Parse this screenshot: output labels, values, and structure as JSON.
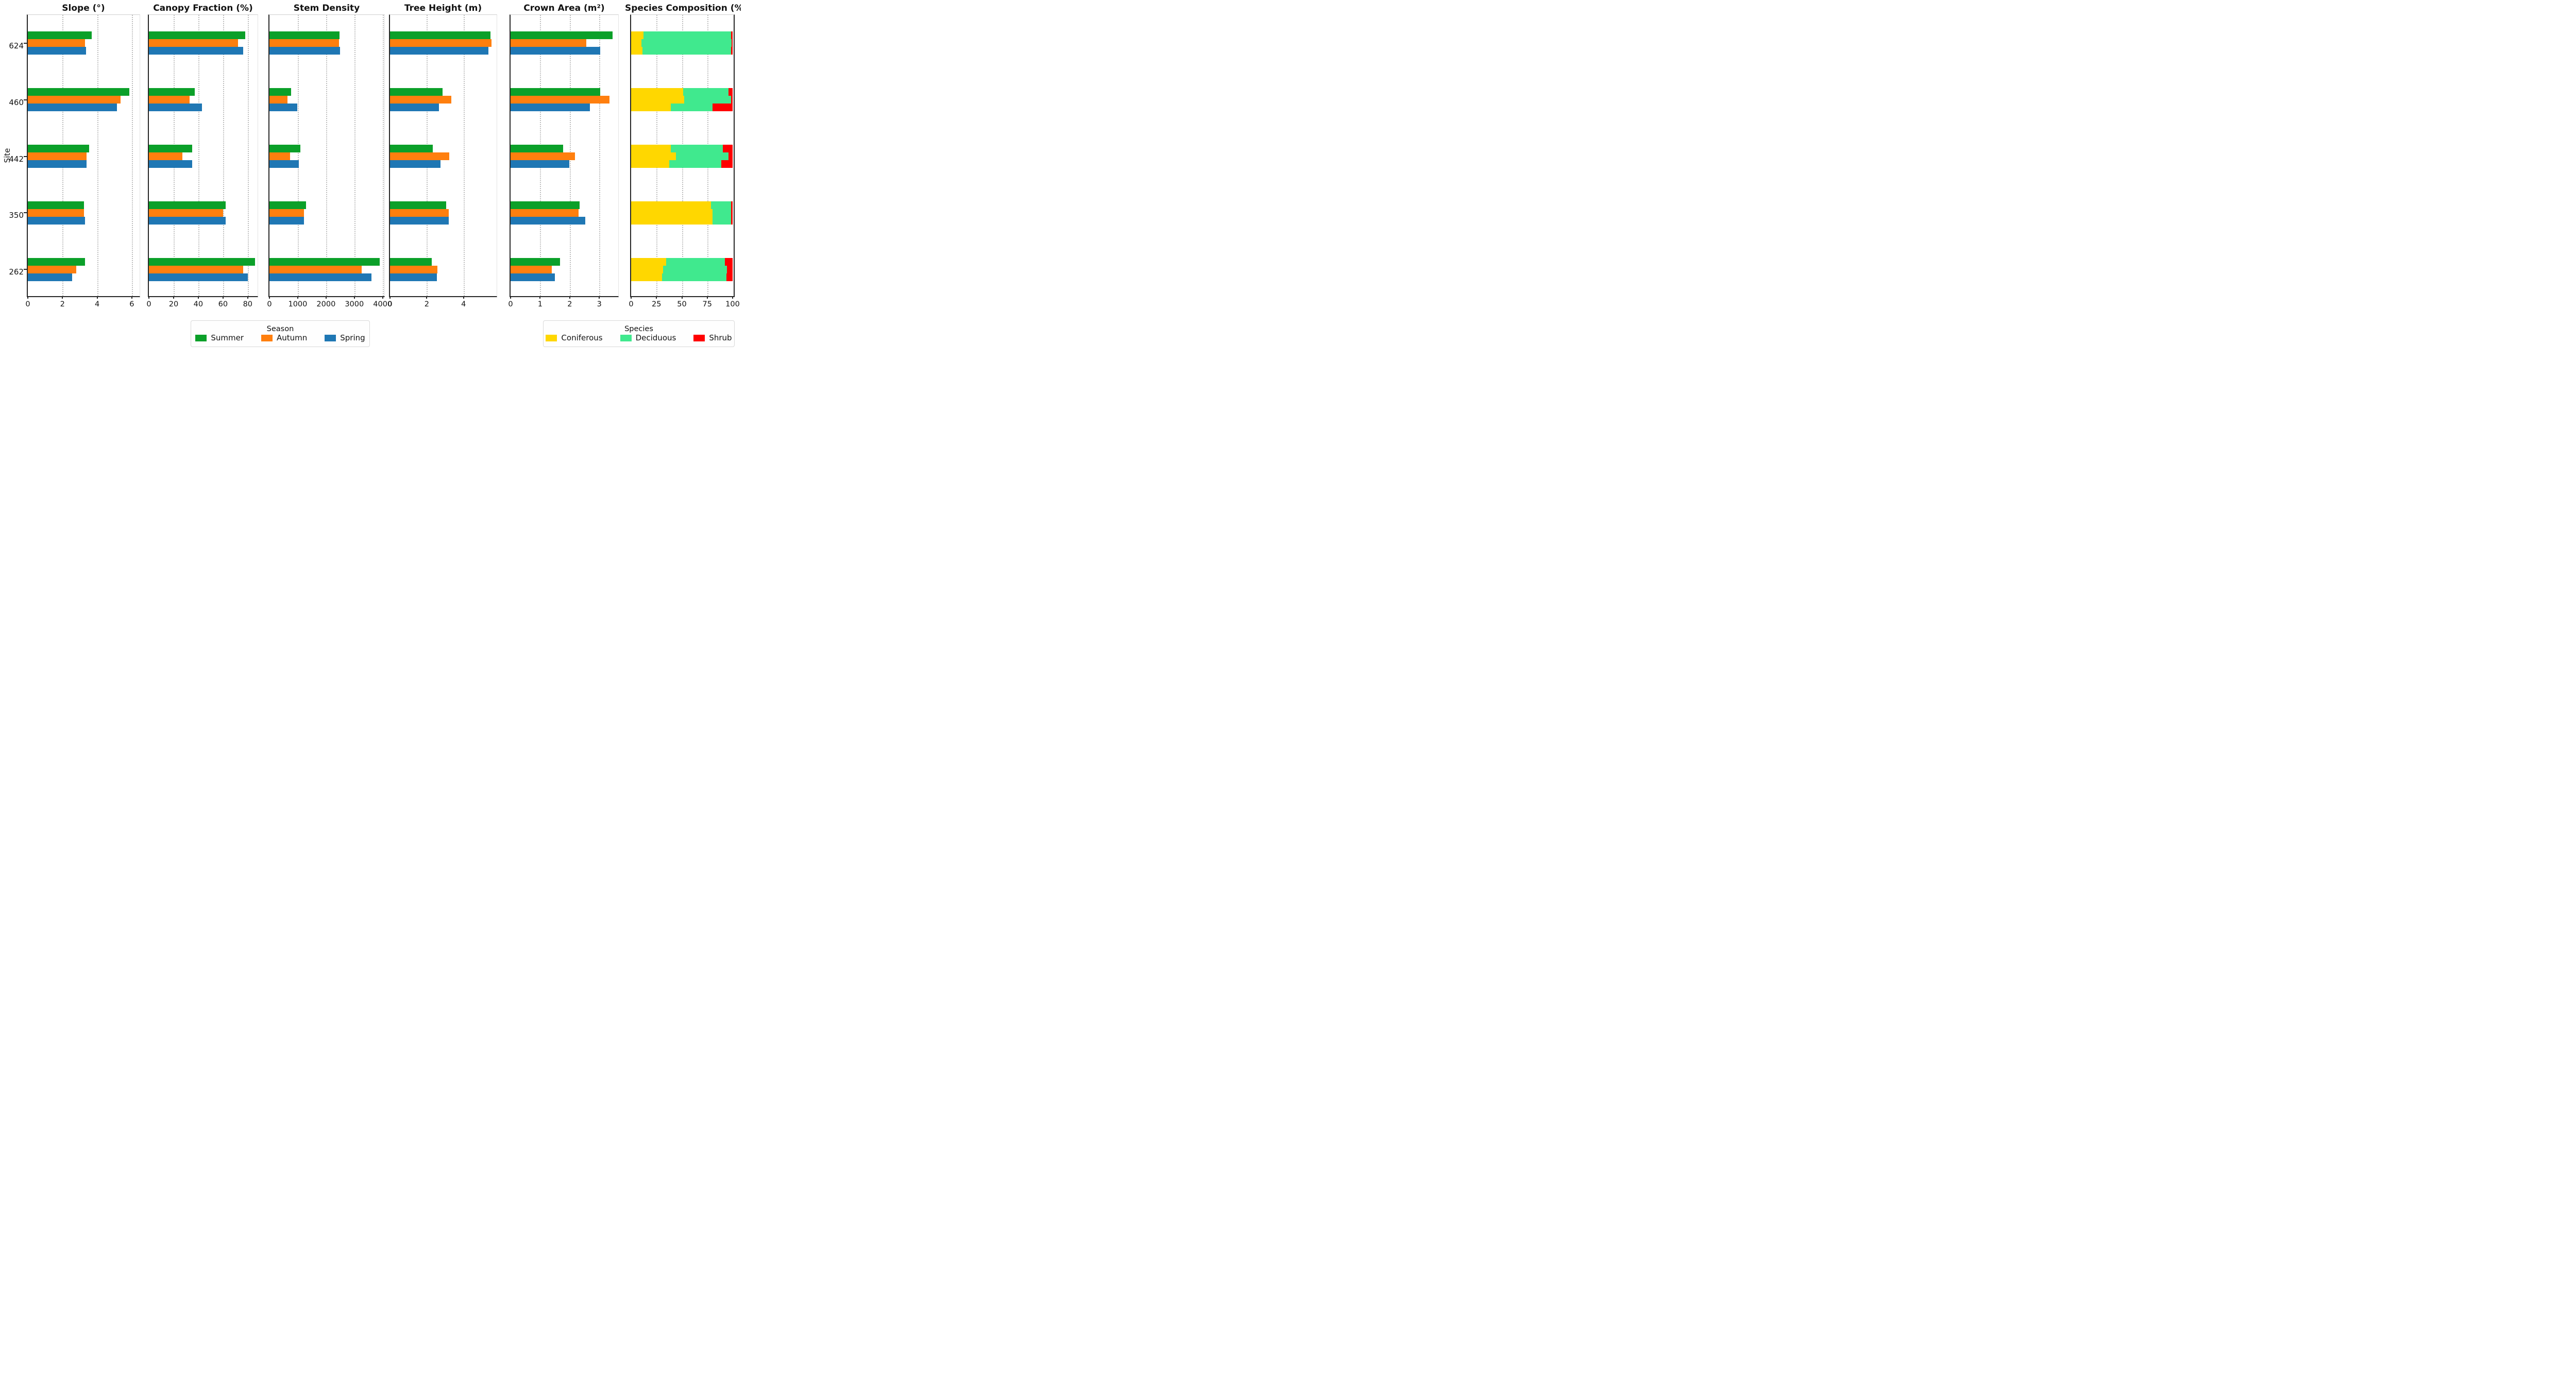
{
  "y_axis": {
    "label": "Site",
    "sites": [
      "624",
      "460",
      "442",
      "350",
      "262"
    ]
  },
  "legends": {
    "season_title": "Season",
    "species_title": "Species"
  },
  "seasons": [
    {
      "name": "Summer",
      "color": "#0ba029"
    },
    {
      "name": "Autumn",
      "color": "#ff7f0e"
    },
    {
      "name": "Spring",
      "color": "#1f77b4"
    }
  ],
  "species": [
    {
      "name": "Coniferous",
      "color": "#ffd700"
    },
    {
      "name": "Deciduous",
      "color": "#40e98e"
    },
    {
      "name": "Shrub",
      "color": "#ff0000"
    }
  ],
  "chart_data": [
    {
      "type": "bar",
      "orientation": "horizontal",
      "title": "Slope (°)",
      "categories": [
        "624",
        "460",
        "442",
        "350",
        "262"
      ],
      "series": [
        {
          "name": "Summer",
          "values": [
            3.7,
            5.85,
            3.55,
            3.25,
            3.3
          ]
        },
        {
          "name": "Autumn",
          "values": [
            3.3,
            5.35,
            3.4,
            3.25,
            2.8
          ]
        },
        {
          "name": "Spring",
          "values": [
            3.35,
            5.15,
            3.4,
            3.3,
            2.55
          ]
        }
      ],
      "xticks": [
        0,
        2,
        4,
        6
      ],
      "xlim": [
        0,
        6.45
      ],
      "grid": true,
      "legend_position": "bottom"
    },
    {
      "type": "bar",
      "orientation": "horizontal",
      "title": "Canopy Fraction (%)",
      "categories": [
        "624",
        "460",
        "442",
        "350",
        "262"
      ],
      "series": [
        {
          "name": "Summer",
          "values": [
            78,
            37,
            35,
            62,
            86
          ]
        },
        {
          "name": "Autumn",
          "values": [
            72,
            33,
            27,
            60,
            76.5
          ]
        },
        {
          "name": "Spring",
          "values": [
            76.5,
            43,
            35,
            62,
            80
          ]
        }
      ],
      "xticks": [
        0,
        20,
        40,
        60,
        80
      ],
      "xlim": [
        0,
        88
      ],
      "grid": true,
      "legend_position": "bottom"
    },
    {
      "type": "bar",
      "orientation": "horizontal",
      "title": "Stem Density",
      "categories": [
        "624",
        "460",
        "442",
        "350",
        "262"
      ],
      "series": [
        {
          "name": "Summer",
          "values": [
            2480,
            770,
            1100,
            1285,
            3900
          ]
        },
        {
          "name": "Autumn",
          "values": [
            2450,
            640,
            720,
            1220,
            3260
          ]
        },
        {
          "name": "Spring",
          "values": [
            2500,
            975,
            1040,
            1225,
            3600
          ]
        }
      ],
      "xticks": [
        0,
        1000,
        2000,
        3000,
        4000
      ],
      "xlim": [
        0,
        4060
      ],
      "grid": true,
      "legend_position": "bottom"
    },
    {
      "type": "bar",
      "orientation": "horizontal",
      "title": "Tree Height (m)",
      "categories": [
        "624",
        "460",
        "442",
        "350",
        "262"
      ],
      "series": [
        {
          "name": "Summer",
          "values": [
            5.47,
            2.87,
            2.33,
            3.06,
            2.26
          ]
        },
        {
          "name": "Autumn",
          "values": [
            5.53,
            3.34,
            3.22,
            3.19,
            2.58
          ]
        },
        {
          "name": "Spring",
          "values": [
            5.36,
            2.66,
            2.74,
            3.19,
            2.54
          ]
        }
      ],
      "xticks": [
        0,
        2,
        4
      ],
      "xlim": [
        0,
        5.8
      ],
      "grid": true,
      "legend_position": "bottom"
    },
    {
      "type": "bar",
      "orientation": "horizontal",
      "title": "Crown Area (m²)",
      "categories": [
        "624",
        "460",
        "442",
        "350",
        "262"
      ],
      "series": [
        {
          "name": "Summer",
          "values": [
            3.45,
            3.03,
            1.77,
            2.34,
            1.68
          ]
        },
        {
          "name": "Autumn",
          "values": [
            2.56,
            3.35,
            2.18,
            2.3,
            1.4
          ]
        },
        {
          "name": "Spring",
          "values": [
            3.03,
            2.68,
            1.98,
            2.53,
            1.5
          ]
        }
      ],
      "xticks": [
        0,
        1,
        2,
        3
      ],
      "xlim": [
        0,
        3.64
      ],
      "grid": true,
      "legend_position": "bottom"
    },
    {
      "type": "stacked-bar",
      "orientation": "horizontal",
      "title": "Species Composition (%)",
      "categories": [
        "624",
        "460",
        "442",
        "350",
        "262"
      ],
      "segment_order": [
        "Coniferous",
        "Deciduous",
        "Shrub"
      ],
      "row_order": [
        "Summer",
        "Autumn",
        "Spring"
      ],
      "stacks": {
        "624": {
          "Summer": [
            12,
            86.5,
            1.5
          ],
          "Autumn": [
            10,
            89,
            1
          ],
          "Spring": [
            11,
            87.5,
            1.5
          ]
        },
        "460": {
          "Summer": [
            51.5,
            44.5,
            4
          ],
          "Autumn": [
            52.5,
            46,
            1.5
          ],
          "Spring": [
            39,
            41,
            20
          ]
        },
        "442": {
          "Summer": [
            39,
            51.5,
            9.5
          ],
          "Autumn": [
            44,
            52,
            4
          ],
          "Spring": [
            37.5,
            51.5,
            11
          ]
        },
        "350": {
          "Summer": [
            78.5,
            20,
            1.5
          ],
          "Autumn": [
            80,
            18.5,
            1.5
          ],
          "Spring": [
            80,
            18.5,
            1.5
          ]
        },
        "262": {
          "Summer": [
            34.5,
            58,
            7.5
          ],
          "Autumn": [
            31.5,
            63,
            5.5
          ],
          "Spring": [
            30.5,
            63.5,
            6
          ]
        }
      },
      "xticks": [
        0,
        25,
        50,
        75,
        100
      ],
      "xlim": [
        0,
        101
      ],
      "grid": true,
      "legend_position": "bottom"
    }
  ]
}
